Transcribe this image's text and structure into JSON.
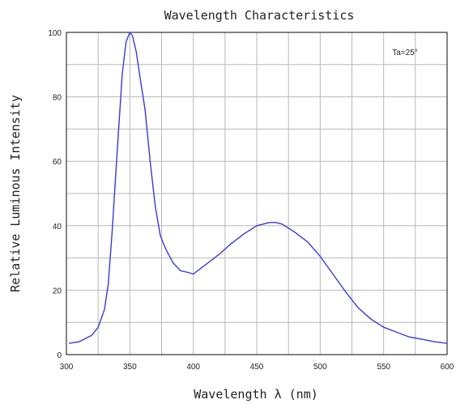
{
  "chart_data": {
    "type": "line",
    "title": "Wavelength Characteristics",
    "xlabel": "Wavelength λ (nm)",
    "ylabel": "Relative Luminous Intensity",
    "xlim": [
      300,
      600
    ],
    "ylim": [
      0,
      100
    ],
    "x_ticks": [
      300,
      350,
      400,
      450,
      500,
      550,
      600
    ],
    "y_ticks": [
      0,
      20,
      40,
      60,
      80,
      100
    ],
    "grid": true,
    "annotation": "Ta=25°",
    "series": [
      {
        "color": "#3a3ad6",
        "x": [
          302,
          310,
          320,
          325,
          330,
          333,
          336,
          340,
          344,
          347,
          350,
          352,
          355,
          358,
          362,
          366,
          370,
          374,
          378,
          384,
          390,
          396,
          400,
          410,
          420,
          430,
          440,
          450,
          460,
          465,
          470,
          480,
          490,
          500,
          510,
          520,
          530,
          540,
          550,
          560,
          570,
          580,
          590,
          600
        ],
        "y": [
          3.5,
          4,
          6,
          8.5,
          14,
          22,
          38,
          63,
          87,
          97,
          100,
          99,
          94,
          86,
          76,
          60,
          46,
          37,
          33,
          28.5,
          26,
          25.5,
          25,
          28,
          31,
          34.5,
          37.5,
          40,
          41,
          41,
          40.5,
          38,
          35,
          30.5,
          25,
          19.5,
          14.5,
          11,
          8.5,
          7,
          5.5,
          4.8,
          4,
          3.5
        ]
      }
    ]
  }
}
